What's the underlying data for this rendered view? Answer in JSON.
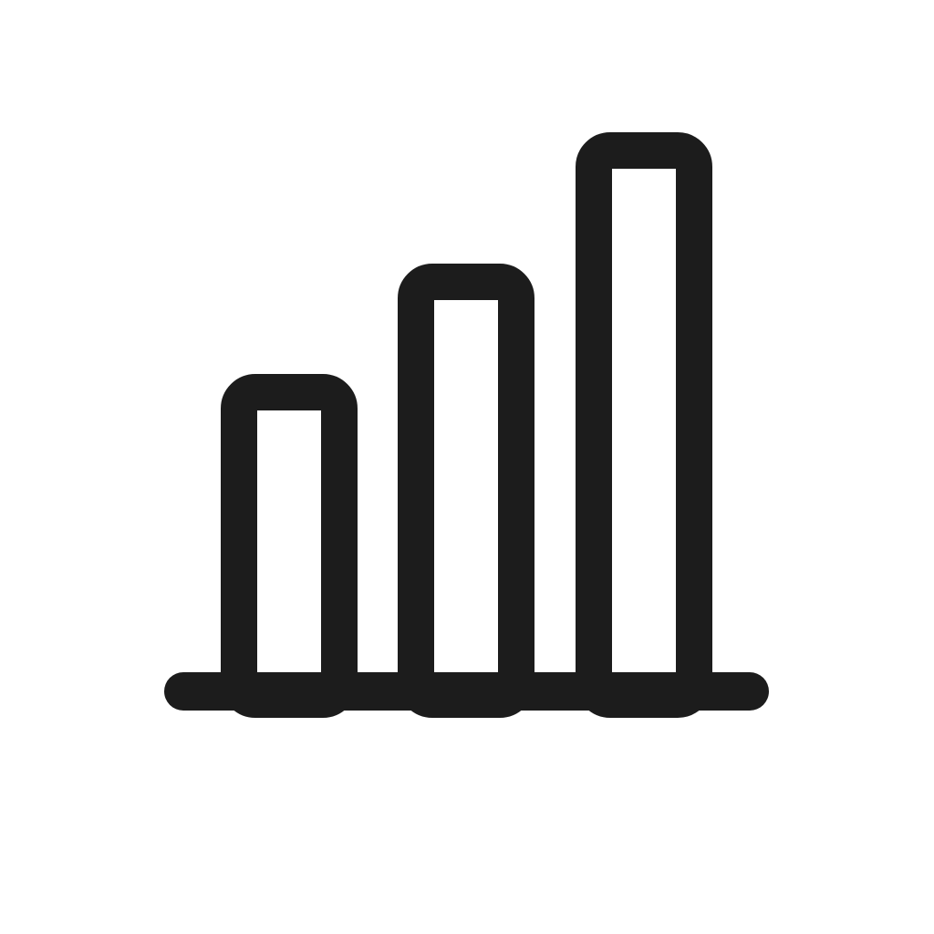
{
  "icon": {
    "name": "bar-chart-icon",
    "stroke_color": "#1c1c1c",
    "background_color": "#ffffff",
    "bars": [
      {
        "name": "short",
        "level": 0.56
      },
      {
        "name": "medium",
        "level": 0.76
      },
      {
        "name": "tall",
        "level": 1.0
      }
    ]
  }
}
